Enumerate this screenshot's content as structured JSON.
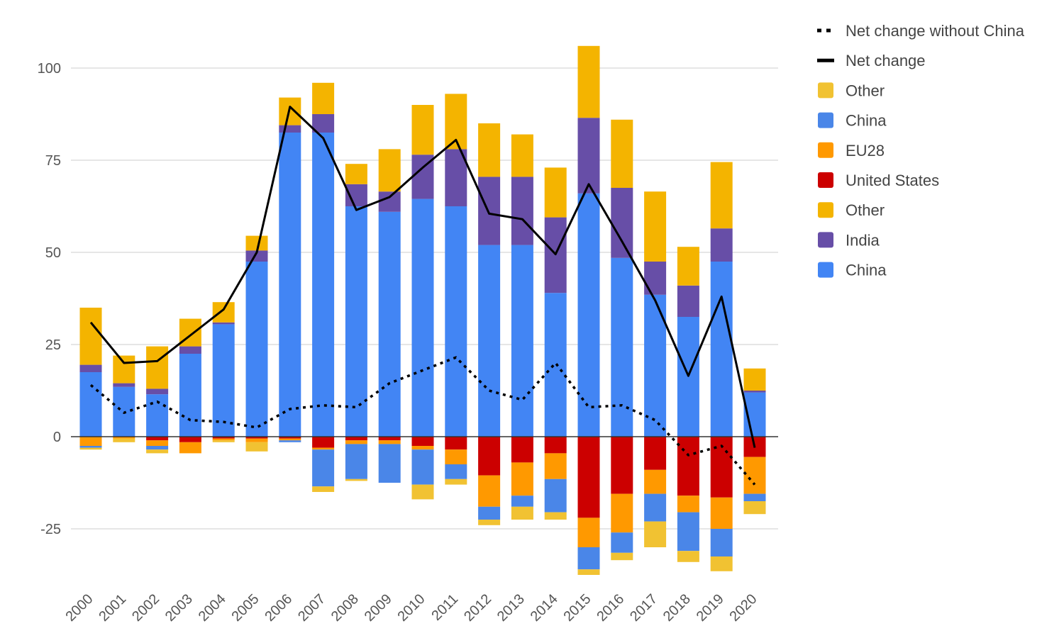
{
  "chart_data": {
    "type": "bar",
    "stacked": true,
    "categories": [
      "2000",
      "2001",
      "2002",
      "2003",
      "2004",
      "2005",
      "2006",
      "2007",
      "2008",
      "2009",
      "2010",
      "2011",
      "2012",
      "2013",
      "2014",
      "2015",
      "2016",
      "2017",
      "2018",
      "2019",
      "2020"
    ],
    "yticks": [
      "100",
      "75",
      "50",
      "25",
      "0",
      "-25"
    ],
    "ylim": [
      -37,
      106
    ],
    "grid": true,
    "legend_position": "right",
    "positive_series": [
      {
        "name": "China",
        "color": "#4285f4",
        "values": [
          17.5,
          13.5,
          11.5,
          22.5,
          30.5,
          47.5,
          82.5,
          82.5,
          62.5,
          61,
          64.5,
          62.5,
          52,
          52,
          39,
          66,
          48.5,
          38.5,
          32.5,
          47.5,
          12
        ]
      },
      {
        "name": "India",
        "color": "#674ea7",
        "values": [
          2,
          1,
          1.5,
          2,
          0.5,
          3,
          2,
          5,
          6,
          5.5,
          12,
          15.5,
          18.5,
          18.5,
          20.5,
          20.5,
          19,
          9,
          8.5,
          9,
          0.5
        ]
      },
      {
        "name": "Other",
        "color": "#f4b400",
        "values": [
          15.5,
          7.5,
          11.5,
          7.5,
          5.5,
          4,
          7.5,
          8.5,
          5.5,
          11.5,
          13.5,
          15,
          14.5,
          11.5,
          13.5,
          19.5,
          18.5,
          19,
          10.5,
          18,
          6
        ]
      }
    ],
    "negative_series": [
      {
        "name": "United States",
        "color": "#cc0000",
        "values": [
          0,
          0,
          -1,
          -1.5,
          -0.5,
          -0.5,
          -0.5,
          -3,
          -1,
          -1,
          -2.5,
          -3.5,
          -10.5,
          -7,
          -4.5,
          -22,
          -15.5,
          -9,
          -16,
          -16.5,
          -5.5
        ]
      },
      {
        "name": "EU28",
        "color": "#ff9900",
        "values": [
          -2.5,
          -0.5,
          -1.5,
          -3,
          -0.5,
          -1,
          -0.5,
          -0.5,
          -1,
          -1,
          -1,
          -4,
          -8.5,
          -9,
          -7,
          -8,
          -10.5,
          -6.5,
          -4.5,
          -8.5,
          -10
        ]
      },
      {
        "name": "China",
        "color": "#4a86e8",
        "values": [
          -0.5,
          0,
          -1,
          0,
          0,
          0,
          -0.5,
          -10,
          -9.5,
          -10.5,
          -9.5,
          -4,
          -3.5,
          -3,
          -9,
          -6,
          -5.5,
          -7.5,
          -10.5,
          -7.5,
          -2
        ]
      },
      {
        "name": "Other",
        "color": "#f1c232",
        "values": [
          -0.5,
          -1,
          -1,
          0,
          -0.5,
          -2.5,
          0,
          -1.5,
          -0.5,
          0,
          -4,
          -1.5,
          -1.5,
          -3.5,
          -2,
          -1.5,
          -2,
          -7,
          -3,
          -4,
          -3.5
        ]
      }
    ],
    "lines": [
      {
        "name": "Net change",
        "style": "solid",
        "color": "#000000",
        "values": [
          31,
          20,
          20.5,
          27.5,
          34.5,
          50,
          89.5,
          81,
          61.5,
          65,
          73,
          80.5,
          60.5,
          59,
          49.5,
          68.5,
          53,
          37,
          16.5,
          38,
          -3
        ]
      },
      {
        "name": "Net change without China",
        "style": "dotted",
        "color": "#000000",
        "values": [
          14,
          6.5,
          9.5,
          4.5,
          4,
          2.5,
          7.5,
          8.5,
          8,
          14.5,
          18,
          21.5,
          12.5,
          10,
          20,
          8,
          8.5,
          4.5,
          -5,
          -2.5,
          -13
        ]
      }
    ],
    "legend": [
      {
        "name": "Net change without China",
        "kind": "dotted",
        "color": "#000000"
      },
      {
        "name": "Net change",
        "kind": "solid",
        "color": "#000000"
      },
      {
        "name": "Other",
        "kind": "box",
        "color": "#f1c232"
      },
      {
        "name": "China",
        "kind": "box",
        "color": "#4a86e8"
      },
      {
        "name": "EU28",
        "kind": "box",
        "color": "#ff9900"
      },
      {
        "name": "United States",
        "kind": "box",
        "color": "#cc0000"
      },
      {
        "name": "Other",
        "kind": "box",
        "color": "#f4b400"
      },
      {
        "name": "India",
        "kind": "box",
        "color": "#674ea7"
      },
      {
        "name": "China",
        "kind": "box",
        "color": "#4285f4"
      }
    ]
  }
}
